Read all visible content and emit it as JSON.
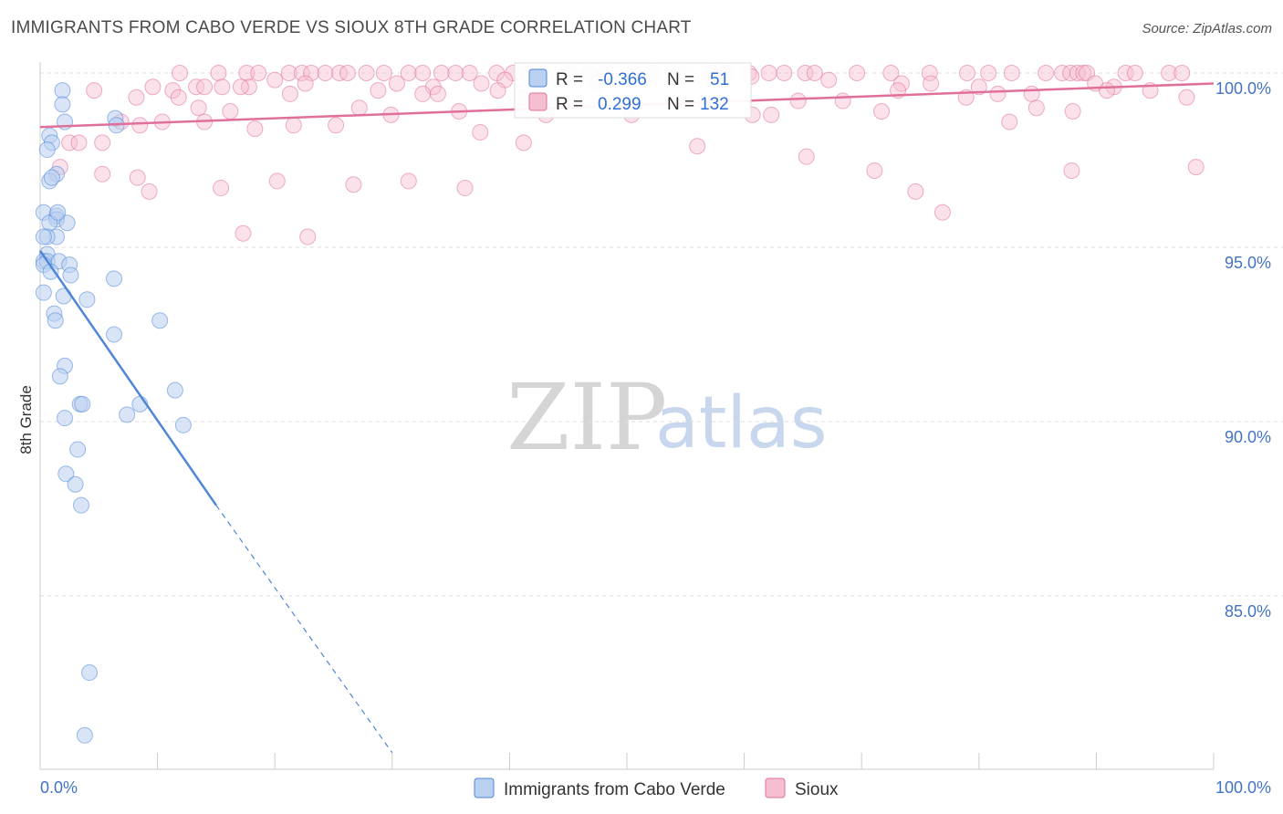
{
  "header": {
    "title": "IMMIGRANTS FROM CABO VERDE VS SIOUX 8TH GRADE CORRELATION CHART",
    "source": "Source: ZipAtlas.com"
  },
  "watermark": {
    "zip": "ZIP",
    "atlas": "atlas"
  },
  "legend": {
    "r_label": "R =",
    "n_label": "N =",
    "blue": {
      "r": "-0.366",
      "n": "51"
    },
    "pink": {
      "r": "0.299",
      "n": "132"
    }
  },
  "bottom_legend": {
    "blue_label": "Immigrants from Cabo Verde",
    "pink_label": "Sioux"
  },
  "colors": {
    "blue": "#4f86d8",
    "blue_fill": "#b9d0f1",
    "pink": "#e0709a",
    "pink_fill": "#f6bfd1",
    "tick_text": "#4472c4"
  },
  "chart_data": {
    "type": "scatter",
    "title": "IMMIGRANTS FROM CABO VERDE VS SIOUX 8TH GRADE CORRELATION CHART",
    "xlabel": "",
    "ylabel": "8th Grade",
    "xlim": [
      0,
      100
    ],
    "ylim": [
      80.5,
      100.7
    ],
    "x_tick_labels": {
      "left": "0.0%",
      "right": "100.0%"
    },
    "y_ticks": [
      {
        "value": 100,
        "label": "100.0%"
      },
      {
        "value": 95,
        "label": "95.0%"
      },
      {
        "value": 90,
        "label": "90.0%"
      },
      {
        "value": 85,
        "label": "85.0%"
      }
    ],
    "series": [
      {
        "name": "Immigrants from Cabo Verde",
        "color": "blue",
        "R": -0.366,
        "N": 51,
        "trend": {
          "x0": 0,
          "y0": 94.9,
          "x1": 15,
          "y1": 87.6,
          "dash_to_x": 30,
          "dash_to_y": 80.5
        },
        "points": [
          [
            1.9,
            99.5
          ],
          [
            1.9,
            99.1
          ],
          [
            2.1,
            98.6
          ],
          [
            6.4,
            98.7
          ],
          [
            6.5,
            98.5
          ],
          [
            0.8,
            98.2
          ],
          [
            1.0,
            98.0
          ],
          [
            0.6,
            97.8
          ],
          [
            1.4,
            97.1
          ],
          [
            0.8,
            96.9
          ],
          [
            1.0,
            97.0
          ],
          [
            0.3,
            96.0
          ],
          [
            1.4,
            95.9
          ],
          [
            1.4,
            95.8
          ],
          [
            2.3,
            95.7
          ],
          [
            0.8,
            95.7
          ],
          [
            1.4,
            95.3
          ],
          [
            0.6,
            95.3
          ],
          [
            0.3,
            95.3
          ],
          [
            0.6,
            94.8
          ],
          [
            0.3,
            94.6
          ],
          [
            0.6,
            94.6
          ],
          [
            1.6,
            94.6
          ],
          [
            0.3,
            94.5
          ],
          [
            2.5,
            94.5
          ],
          [
            0.9,
            94.3
          ],
          [
            2.6,
            94.2
          ],
          [
            6.3,
            94.1
          ],
          [
            0.3,
            93.7
          ],
          [
            2.0,
            93.6
          ],
          [
            4.0,
            93.5
          ],
          [
            1.2,
            93.1
          ],
          [
            1.3,
            92.9
          ],
          [
            10.2,
            92.9
          ],
          [
            6.3,
            92.5
          ],
          [
            2.1,
            91.6
          ],
          [
            1.7,
            91.3
          ],
          [
            11.5,
            90.9
          ],
          [
            3.4,
            90.5
          ],
          [
            3.6,
            90.5
          ],
          [
            8.5,
            90.5
          ],
          [
            2.1,
            90.1
          ],
          [
            7.4,
            90.2
          ],
          [
            12.2,
            89.9
          ],
          [
            3.2,
            89.2
          ],
          [
            2.2,
            88.5
          ],
          [
            3.0,
            88.2
          ],
          [
            3.5,
            87.6
          ],
          [
            4.2,
            82.8
          ],
          [
            3.8,
            81.0
          ],
          [
            1.5,
            96.0
          ]
        ]
      },
      {
        "name": "Sioux",
        "color": "pink",
        "R": 0.299,
        "N": 132,
        "trend": {
          "x0": 0,
          "y0": 98.45,
          "x1": 100,
          "y1": 99.7
        },
        "points": [
          [
            11.9,
            100.0
          ],
          [
            15.2,
            100.0
          ],
          [
            17.6,
            100.0
          ],
          [
            18.6,
            100.0
          ],
          [
            21.2,
            100.0
          ],
          [
            22.3,
            100.0
          ],
          [
            23.1,
            100.0
          ],
          [
            24.3,
            100.0
          ],
          [
            25.5,
            100.0
          ],
          [
            26.2,
            100.0
          ],
          [
            27.8,
            100.0
          ],
          [
            29.3,
            100.0
          ],
          [
            31.4,
            100.0
          ],
          [
            32.6,
            100.0
          ],
          [
            34.2,
            100.0
          ],
          [
            35.4,
            100.0
          ],
          [
            36.6,
            100.0
          ],
          [
            38.9,
            100.0
          ],
          [
            40.3,
            100.0
          ],
          [
            41.5,
            100.0
          ],
          [
            42.6,
            100.0
          ],
          [
            45.1,
            100.0
          ],
          [
            46.8,
            100.0
          ],
          [
            48.2,
            100.0
          ],
          [
            50.6,
            100.0
          ],
          [
            52.3,
            100.0
          ],
          [
            54.5,
            100.0
          ],
          [
            57.2,
            100.0
          ],
          [
            58.5,
            100.0
          ],
          [
            60.4,
            100.0
          ],
          [
            62.1,
            100.0
          ],
          [
            63.4,
            100.0
          ],
          [
            65.2,
            100.0
          ],
          [
            66.0,
            100.0
          ],
          [
            69.6,
            100.0
          ],
          [
            72.5,
            100.0
          ],
          [
            75.8,
            100.0
          ],
          [
            79.0,
            100.0
          ],
          [
            80.8,
            100.0
          ],
          [
            82.8,
            100.0
          ],
          [
            85.7,
            100.0
          ],
          [
            87.1,
            100.0
          ],
          [
            87.8,
            100.0
          ],
          [
            88.4,
            100.0
          ],
          [
            88.9,
            100.0
          ],
          [
            89.2,
            100.0
          ],
          [
            92.5,
            100.0
          ],
          [
            93.3,
            100.0
          ],
          [
            96.2,
            100.0
          ],
          [
            97.3,
            100.0
          ],
          [
            9.6,
            99.6
          ],
          [
            20.0,
            99.8
          ],
          [
            22.6,
            99.7
          ],
          [
            30.4,
            99.7
          ],
          [
            13.3,
            99.6
          ],
          [
            15.5,
            99.6
          ],
          [
            17.8,
            99.6
          ],
          [
            33.5,
            99.6
          ],
          [
            39.6,
            99.8
          ],
          [
            47.4,
            99.7
          ],
          [
            60.6,
            99.9
          ],
          [
            67.2,
            99.8
          ],
          [
            73.4,
            99.7
          ],
          [
            75.9,
            99.7
          ],
          [
            80.0,
            99.6
          ],
          [
            89.9,
            99.7
          ],
          [
            91.5,
            99.6
          ],
          [
            4.6,
            99.5
          ],
          [
            11.3,
            99.5
          ],
          [
            14.0,
            99.6
          ],
          [
            17.1,
            99.6
          ],
          [
            21.3,
            99.4
          ],
          [
            28.8,
            99.5
          ],
          [
            32.6,
            99.4
          ],
          [
            33.9,
            99.4
          ],
          [
            37.6,
            99.7
          ],
          [
            39.0,
            99.5
          ],
          [
            41.2,
            99.3
          ],
          [
            64.6,
            99.2
          ],
          [
            68.4,
            99.2
          ],
          [
            73.1,
            99.5
          ],
          [
            78.9,
            99.3
          ],
          [
            81.6,
            99.4
          ],
          [
            84.5,
            99.4
          ],
          [
            90.9,
            99.5
          ],
          [
            94.6,
            99.5
          ],
          [
            97.7,
            99.3
          ],
          [
            8.2,
            99.3
          ],
          [
            11.8,
            99.3
          ],
          [
            13.5,
            99.0
          ],
          [
            16.2,
            98.9
          ],
          [
            27.2,
            99.0
          ],
          [
            29.9,
            98.8
          ],
          [
            35.7,
            98.9
          ],
          [
            43.1,
            98.8
          ],
          [
            50.4,
            98.8
          ],
          [
            60.7,
            98.8
          ],
          [
            62.3,
            98.8
          ],
          [
            71.7,
            98.9
          ],
          [
            84.9,
            99.0
          ],
          [
            88.0,
            98.9
          ],
          [
            6.9,
            98.6
          ],
          [
            8.5,
            98.5
          ],
          [
            10.4,
            98.6
          ],
          [
            14.0,
            98.6
          ],
          [
            18.3,
            98.4
          ],
          [
            21.6,
            98.5
          ],
          [
            25.2,
            98.5
          ],
          [
            37.5,
            98.3
          ],
          [
            41.2,
            98.0
          ],
          [
            2.5,
            98.0
          ],
          [
            3.3,
            98.0
          ],
          [
            5.3,
            98.0
          ],
          [
            56.0,
            97.9
          ],
          [
            65.3,
            97.6
          ],
          [
            71.1,
            97.2
          ],
          [
            82.6,
            98.6
          ],
          [
            87.9,
            97.2
          ],
          [
            98.5,
            97.3
          ],
          [
            1.7,
            97.3
          ],
          [
            5.3,
            97.1
          ],
          [
            8.3,
            97.0
          ],
          [
            9.3,
            96.6
          ],
          [
            15.4,
            96.7
          ],
          [
            20.2,
            96.9
          ],
          [
            26.7,
            96.8
          ],
          [
            31.4,
            96.9
          ],
          [
            36.2,
            96.7
          ],
          [
            74.6,
            96.6
          ],
          [
            76.9,
            96.0
          ],
          [
            17.3,
            95.4
          ],
          [
            22.8,
            95.3
          ]
        ]
      }
    ]
  }
}
